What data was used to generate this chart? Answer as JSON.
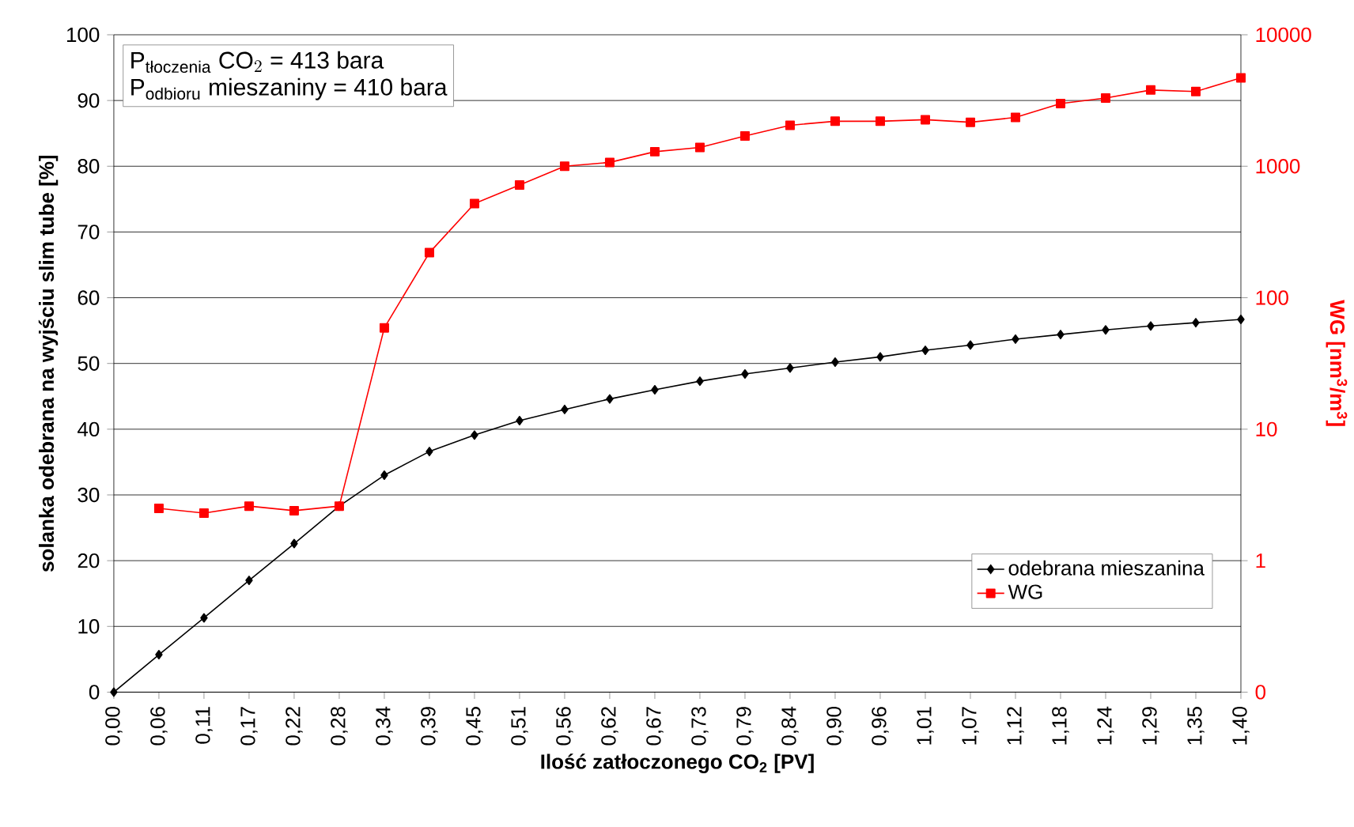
{
  "chart_data": {
    "type": "line",
    "categories": [
      "0,00",
      "0,06",
      "0,11",
      "0,17",
      "0,22",
      "0,28",
      "0,34",
      "0,39",
      "0,45",
      "0,51",
      "0,56",
      "0,62",
      "0,67",
      "0,73",
      "0,79",
      "0,84",
      "0,90",
      "0,96",
      "1,01",
      "1,07",
      "1,12",
      "1,18",
      "1,24",
      "1,29",
      "1,35",
      "1,40"
    ],
    "series": [
      {
        "name": "odebrana mieszanina",
        "color": "#000000",
        "marker": "diamond",
        "values": [
          0,
          5.7,
          11.3,
          17,
          22.6,
          28.3,
          33,
          36.6,
          39.1,
          41.3,
          43,
          44.6,
          46,
          47.3,
          48.4,
          49.3,
          50.2,
          51,
          52,
          52.8,
          53.7,
          54.4,
          55.1,
          55.7,
          56.2,
          56.7
        ]
      },
      {
        "name": "WG",
        "color": "#ff0000",
        "marker": "square",
        "axis": "y2",
        "values": [
          null,
          2.5,
          2.3,
          2.6,
          2.4,
          2.6,
          59,
          220,
          520,
          720,
          1000,
          1070,
          1290,
          1390,
          1700,
          2050,
          2200,
          2200,
          2260,
          2160,
          2350,
          3000,
          3300,
          3800,
          3700,
          4700
        ]
      }
    ],
    "xlabel": "Ilość zatłoczonego CO$_{2}$ [PV]",
    "ylabel": "solanka odebrana na wyjściu slim tube [%]",
    "y2label": "WG [nm$^{3}$/m$^{3}$]",
    "ylim": [
      0,
      100
    ],
    "yticks": [
      0,
      10,
      20,
      30,
      40,
      50,
      60,
      70,
      80,
      90,
      100
    ],
    "y2lim": [
      0.1,
      10000
    ],
    "y2ticks": [
      {
        "value": 0.1,
        "label": "0"
      },
      1,
      10,
      100,
      1000,
      10000
    ],
    "log": "y2",
    "grid": "y",
    "legend": "bottom right",
    "line_style": "solid",
    "annotations": [
      "\\text{P}_{\\text{tłoczenia}}\\text{ CO}_{2}\\text{ = 413 bara}",
      "\\text{P}_{\\text{odbioru}}\\text{ mieszaniny = 410 bara}"
    ]
  }
}
